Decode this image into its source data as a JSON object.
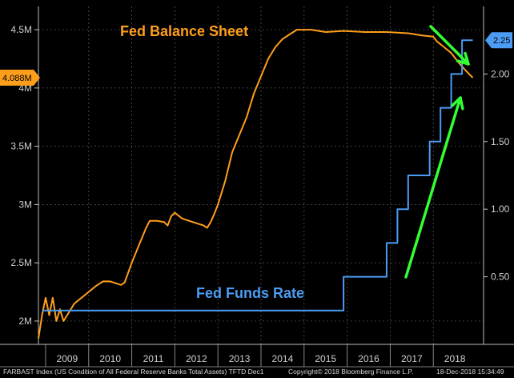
{
  "chart_data": {
    "type": "line",
    "x_categories": [
      "2009",
      "2010",
      "2011",
      "2012",
      "2013",
      "2014",
      "2015",
      "2016",
      "2017",
      "2018"
    ],
    "xlim": [
      "2008-11",
      "2019-03"
    ],
    "left_axis": {
      "ticks": [
        "2M",
        "2.5M",
        "3M",
        "3.5M",
        "4M",
        "4.5M"
      ],
      "tick_values": [
        2.0,
        2.5,
        3.0,
        3.5,
        4.0,
        4.5
      ],
      "ylim": [
        1.8,
        4.7
      ]
    },
    "right_axis": {
      "ticks": [
        "0.50",
        "1.00",
        "1.50",
        "2.00"
      ],
      "tick_values": [
        0.5,
        1.0,
        1.5,
        2.0
      ],
      "ylim": [
        0.0,
        2.5
      ]
    },
    "grid": true,
    "series": [
      {
        "name": "Fed Balance Sheet",
        "axis": "left",
        "color": "#ff9e1b",
        "points": [
          [
            "2008-11",
            1.85
          ],
          [
            "2008-12",
            2.05
          ],
          [
            "2009-01",
            2.2
          ],
          [
            "2009-02",
            2.05
          ],
          [
            "2009-03",
            2.2
          ],
          [
            "2009-04",
            2.0
          ],
          [
            "2009-05",
            2.1
          ],
          [
            "2009-06",
            2.0
          ],
          [
            "2009-07",
            2.05
          ],
          [
            "2009-09",
            2.15
          ],
          [
            "2009-11",
            2.2
          ],
          [
            "2010-01",
            2.25
          ],
          [
            "2010-03",
            2.3
          ],
          [
            "2010-05",
            2.34
          ],
          [
            "2010-07",
            2.34
          ],
          [
            "2010-09",
            2.32
          ],
          [
            "2010-10",
            2.31
          ],
          [
            "2010-11",
            2.33
          ],
          [
            "2011-01",
            2.5
          ],
          [
            "2011-03",
            2.65
          ],
          [
            "2011-05",
            2.8
          ],
          [
            "2011-06",
            2.86
          ],
          [
            "2011-08",
            2.86
          ],
          [
            "2011-10",
            2.85
          ],
          [
            "2011-11",
            2.82
          ],
          [
            "2011-12",
            2.9
          ],
          [
            "2012-01",
            2.93
          ],
          [
            "2012-03",
            2.88
          ],
          [
            "2012-05",
            2.86
          ],
          [
            "2012-07",
            2.84
          ],
          [
            "2012-09",
            2.82
          ],
          [
            "2012-10",
            2.8
          ],
          [
            "2012-11",
            2.85
          ],
          [
            "2012-12",
            2.92
          ],
          [
            "2013-01",
            3.0
          ],
          [
            "2013-03",
            3.2
          ],
          [
            "2013-05",
            3.45
          ],
          [
            "2013-07",
            3.6
          ],
          [
            "2013-09",
            3.75
          ],
          [
            "2013-11",
            3.95
          ],
          [
            "2014-01",
            4.1
          ],
          [
            "2014-03",
            4.25
          ],
          [
            "2014-05",
            4.35
          ],
          [
            "2014-07",
            4.42
          ],
          [
            "2014-09",
            4.46
          ],
          [
            "2014-11",
            4.5
          ],
          [
            "2015-03",
            4.5
          ],
          [
            "2015-07",
            4.48
          ],
          [
            "2015-12",
            4.49
          ],
          [
            "2016-06",
            4.48
          ],
          [
            "2016-12",
            4.48
          ],
          [
            "2017-06",
            4.47
          ],
          [
            "2017-10",
            4.45
          ],
          [
            "2018-01",
            4.44
          ],
          [
            "2018-02",
            4.4
          ],
          [
            "2018-04",
            4.35
          ],
          [
            "2018-06",
            4.3
          ],
          [
            "2018-08",
            4.22
          ],
          [
            "2018-10",
            4.15
          ],
          [
            "2018-12",
            4.088
          ]
        ]
      },
      {
        "name": "Fed Funds Rate",
        "axis": "right",
        "color": "#4b9cf2",
        "points": [
          [
            "2008-12",
            0.25
          ],
          [
            "2015-12",
            0.25
          ],
          [
            "2015-12",
            0.5
          ],
          [
            "2016-12",
            0.5
          ],
          [
            "2016-12",
            0.75
          ],
          [
            "2017-03",
            0.75
          ],
          [
            "2017-03",
            1.0
          ],
          [
            "2017-06",
            1.0
          ],
          [
            "2017-06",
            1.25
          ],
          [
            "2017-12",
            1.25
          ],
          [
            "2017-12",
            1.5
          ],
          [
            "2018-03",
            1.5
          ],
          [
            "2018-03",
            1.75
          ],
          [
            "2018-06",
            1.75
          ],
          [
            "2018-06",
            2.0
          ],
          [
            "2018-09",
            2.0
          ],
          [
            "2018-09",
            2.25
          ],
          [
            "2018-12",
            2.25
          ]
        ]
      }
    ],
    "annotations": {
      "balance_label": "Fed Balance Sheet",
      "rate_label": "Fed Funds Rate",
      "balance_last": "4.088M",
      "rate_last": "2.25"
    },
    "footer_left": "FARBAST Index (US Condition of All Federal Reserve Banks Total Assets) TFTD Dec1",
    "footer_mid": "Copyright© 2018 Bloomberg Finance L.P.",
    "footer_right": "18-Dec-2018 15:34:49",
    "colors": {
      "balance": "#ff9e1b",
      "rate": "#4b9cf2",
      "arrow": "#33ff33",
      "background": "#000000"
    }
  }
}
